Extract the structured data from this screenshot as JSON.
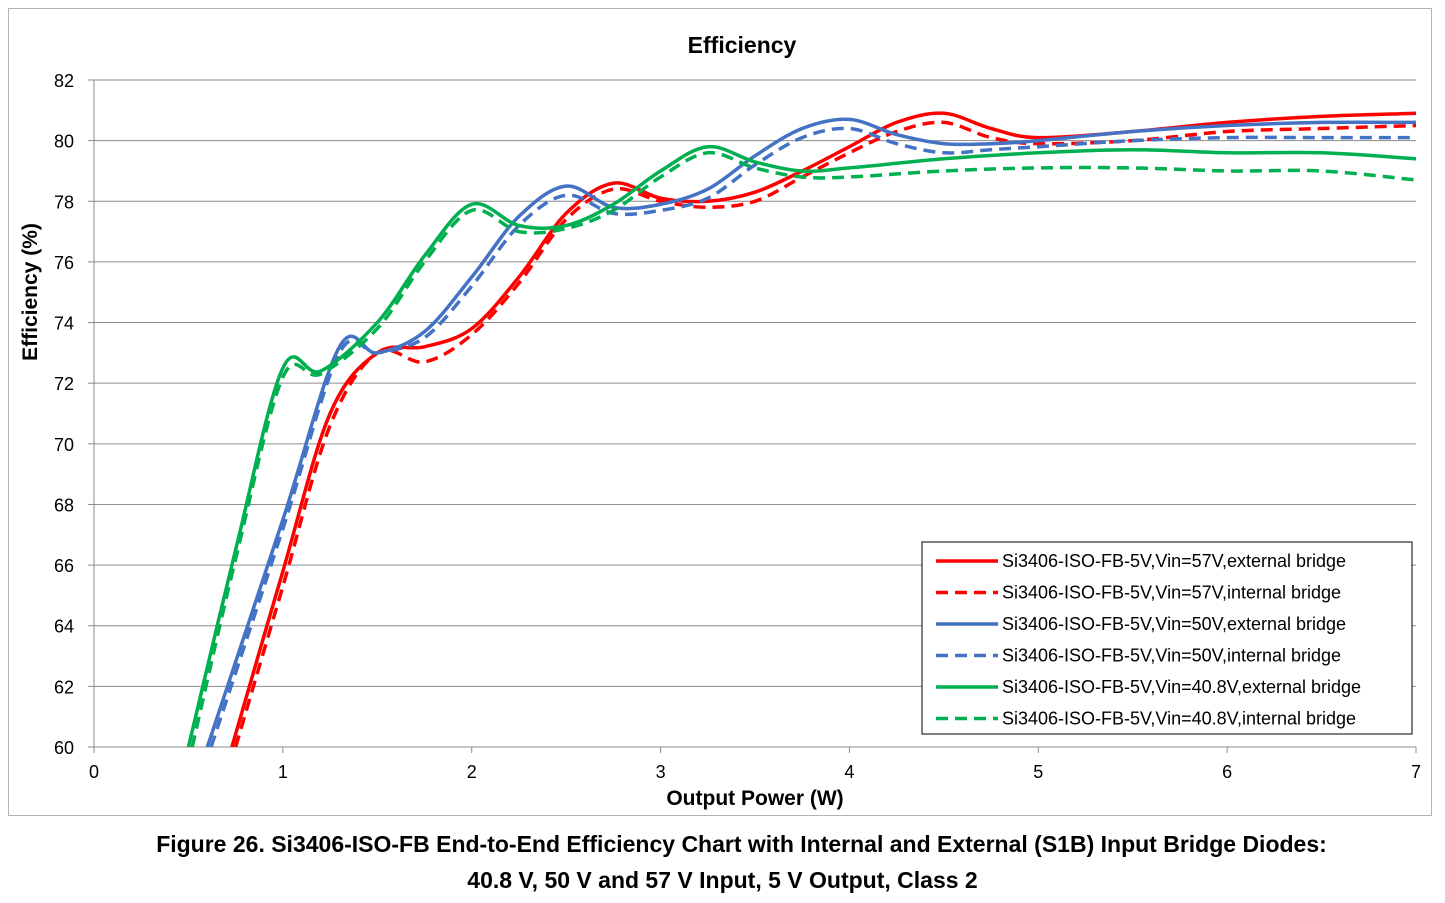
{
  "chart_data": {
    "type": "line",
    "title": "Efficiency",
    "xlabel": "Output Power (W)",
    "ylabel": "Efficiency (%)",
    "xlim": [
      0,
      7
    ],
    "ylim": [
      60,
      82
    ],
    "xticks": [
      "0",
      "1",
      "2",
      "3",
      "4",
      "5",
      "6",
      "7"
    ],
    "yticks": [
      "60",
      "62",
      "64",
      "66",
      "68",
      "70",
      "72",
      "74",
      "76",
      "78",
      "80",
      "82"
    ],
    "grid": "horizontal",
    "legend_position": "bottom-right",
    "series": [
      {
        "name": "Si3406-ISO-FB-5V,Vin=57V,external bridge",
        "color": "#ff0000",
        "dash": "solid",
        "x": [
          0.73,
          1.0,
          1.25,
          1.5,
          1.75,
          2.0,
          2.25,
          2.5,
          2.75,
          3.0,
          3.25,
          3.5,
          3.75,
          4.0,
          4.25,
          4.5,
          4.75,
          5.0,
          5.5,
          6.0,
          6.5,
          7.0
        ],
        "y": [
          60.0,
          65.8,
          71.0,
          73.0,
          73.2,
          73.8,
          75.5,
          77.6,
          78.6,
          78.1,
          78.0,
          78.3,
          79.0,
          79.8,
          80.6,
          80.9,
          80.4,
          80.1,
          80.3,
          80.6,
          80.8,
          80.9
        ]
      },
      {
        "name": "Si3406-ISO-FB-5V,Vin=57V,internal bridge",
        "color": "#ff0000",
        "dash": "dashed",
        "x": [
          0.75,
          1.0,
          1.25,
          1.5,
          1.75,
          2.0,
          2.25,
          2.5,
          2.75,
          3.0,
          3.25,
          3.5,
          3.75,
          4.0,
          4.25,
          4.5,
          4.75,
          5.0,
          5.5,
          6.0,
          6.5,
          7.0
        ],
        "y": [
          60.0,
          65.3,
          70.6,
          73.0,
          72.7,
          73.6,
          75.3,
          77.4,
          78.4,
          78.0,
          77.8,
          78.0,
          78.8,
          79.6,
          80.3,
          80.6,
          80.1,
          79.9,
          80.0,
          80.3,
          80.4,
          80.5
        ]
      },
      {
        "name": "Si3406-ISO-FB-5V,Vin=50V,external bridge",
        "color": "#4472c4",
        "dash": "solid",
        "x": [
          0.6,
          1.0,
          1.3,
          1.5,
          1.75,
          2.0,
          2.25,
          2.5,
          2.75,
          3.0,
          3.25,
          3.5,
          3.75,
          4.0,
          4.25,
          4.5,
          4.75,
          5.0,
          5.5,
          6.0,
          6.5,
          7.0
        ],
        "y": [
          60.0,
          67.5,
          73.2,
          73.0,
          73.7,
          75.5,
          77.5,
          78.5,
          77.8,
          77.9,
          78.4,
          79.5,
          80.4,
          80.7,
          80.2,
          79.9,
          79.9,
          80.0,
          80.3,
          80.5,
          80.6,
          80.6
        ]
      },
      {
        "name": "Si3406-ISO-FB-5V,Vin=50V,internal bridge",
        "color": "#4472c4",
        "dash": "dashed",
        "x": [
          0.62,
          1.0,
          1.3,
          1.5,
          1.75,
          2.0,
          2.25,
          2.5,
          2.75,
          3.0,
          3.25,
          3.5,
          3.75,
          4.0,
          4.25,
          4.5,
          4.75,
          5.0,
          5.5,
          6.0,
          6.5,
          7.0
        ],
        "y": [
          60.0,
          67.2,
          73.0,
          73.0,
          73.5,
          75.2,
          77.2,
          78.2,
          77.6,
          77.7,
          78.1,
          79.2,
          80.1,
          80.4,
          79.9,
          79.6,
          79.7,
          79.8,
          80.0,
          80.1,
          80.1,
          80.1
        ]
      },
      {
        "name": "Si3406-ISO-FB-5V,Vin=40.8V,external bridge",
        "color": "#00b050",
        "dash": "solid",
        "x": [
          0.5,
          0.75,
          1.0,
          1.2,
          1.5,
          1.75,
          2.0,
          2.25,
          2.5,
          2.75,
          3.0,
          3.25,
          3.5,
          3.75,
          4.0,
          4.5,
          5.0,
          5.5,
          6.0,
          6.5,
          7.0
        ],
        "y": [
          60.0,
          66.5,
          72.5,
          72.4,
          74.0,
          76.2,
          77.9,
          77.2,
          77.2,
          77.9,
          79.0,
          79.8,
          79.3,
          79.0,
          79.1,
          79.4,
          79.6,
          79.7,
          79.6,
          79.6,
          79.4
        ]
      },
      {
        "name": "Si3406-ISO-FB-5V,Vin=40.8V,internal bridge",
        "color": "#00b050",
        "dash": "dashed",
        "x": [
          0.52,
          0.75,
          1.0,
          1.2,
          1.5,
          1.75,
          2.0,
          2.25,
          2.5,
          2.75,
          3.0,
          3.25,
          3.5,
          3.75,
          4.0,
          4.5,
          5.0,
          5.5,
          6.0,
          6.5,
          7.0
        ],
        "y": [
          60.0,
          66.2,
          72.2,
          72.3,
          73.8,
          76.0,
          77.7,
          77.0,
          77.1,
          77.7,
          78.8,
          79.6,
          79.1,
          78.8,
          78.8,
          79.0,
          79.1,
          79.1,
          79.0,
          79.0,
          78.7
        ]
      }
    ]
  },
  "caption": {
    "line1": "Figure 26. Si3406-ISO-FB End-to-End Efficiency Chart with Internal and External (S1B) Input Bridge Diodes:",
    "line2": "40.8 V, 50 V and 57 V Input, 5 V Output, Class 2"
  }
}
